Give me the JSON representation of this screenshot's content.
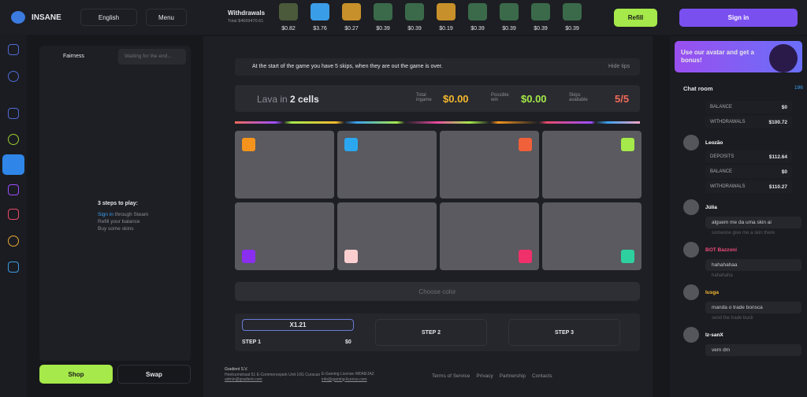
{
  "header": {
    "logo": "INSANE",
    "language": "English",
    "menu": "Menu",
    "withdrawals": "Withdrawals",
    "total": "Total $4669470.61",
    "prices": [
      "$0.82",
      "$3.76",
      "$0.27",
      "$0.39",
      "$0.39",
      "$0.19",
      "$0.39",
      "$0.39",
      "$0.39",
      "$0.39"
    ],
    "refill": "Refill",
    "sign_in": "Sign in"
  },
  "left_panel": {
    "fairness": "Fairness",
    "waiting": "Waiting for the end...",
    "steps_title": "3 steps to play:",
    "step_link": "Sign in",
    "step_1_rest": "through Steam",
    "step_2": "Refill your balance",
    "step_3": "Buy some skins",
    "shop": "Shop",
    "swap": "Swap"
  },
  "game": {
    "tip": "At the start of the game you have 5 skips, when they are out the game is over.",
    "hide_tips": "Hide tips",
    "title": "Lava in",
    "cells": "2 cells",
    "total_label": "Total ingame",
    "total_value": "$0.00",
    "win_label": "Possible win",
    "win_value": "$0.00",
    "skips_label": "Skips available",
    "skips_value": "5/5",
    "choose": "Choose color",
    "multiplier": "X1.21",
    "step1": "STEP 1",
    "step1_value": "$0",
    "step2": "STEP 2",
    "step3": "STEP 3"
  },
  "footer": {
    "company": "Gradient S.V.",
    "address": "Heelsumstraat 51 E-Commercepark Unit 10G Curacao",
    "email": "admin@gradient.com",
    "license": "E-Gaming License #8048/JAZ",
    "license_email": "info@gaming-licence.com",
    "links": [
      "Terms of Service",
      "Privacy",
      "Partnership",
      "Contacts"
    ]
  },
  "chat": {
    "banner": "Use our avatar and get a bonus!",
    "title": "Chat room",
    "online": "196",
    "stats_1": [
      {
        "label": "BALANCE",
        "value": "$0"
      },
      {
        "label": "WITHDRAWALS",
        "value": "$100.72"
      }
    ],
    "user_2": "Leozão",
    "stats_2": [
      {
        "label": "DEPOSITS",
        "value": "$112.64"
      },
      {
        "label": "BALANCE",
        "value": "$0"
      },
      {
        "label": "WITHDRAWALS",
        "value": "$110.27"
      }
    ],
    "messages": [
      {
        "user": "Júlia",
        "text": "alguem me da uma skin ai",
        "translation": "someone give me a skin there"
      },
      {
        "user": "BOT Bazzoni",
        "text": "hahahahaa",
        "translation": "hahahaha"
      },
      {
        "user": "Iusga",
        "text": "manda o trade bonsca",
        "translation": "send the trade buck"
      },
      {
        "user": "Iz-sanX",
        "text": "vem dm"
      }
    ]
  }
}
